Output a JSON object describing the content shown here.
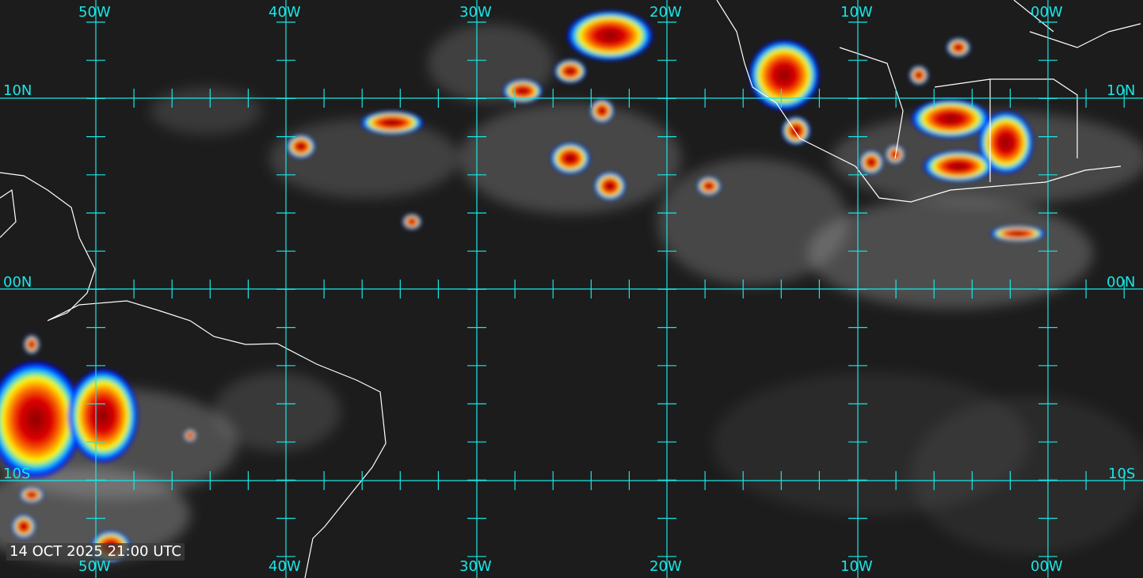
{
  "timestamp": "14 OCT 2025 21:00 UTC",
  "longitude_labels_top": [
    "50W",
    "40W",
    "30W",
    "20W",
    "10W",
    "00W"
  ],
  "longitude_labels_bottom": [
    "50W",
    "40W",
    "30W",
    "20W",
    "10W",
    "00W"
  ],
  "latitude_labels_left": [
    "10N",
    "00N",
    "10S"
  ],
  "latitude_labels_right": [
    "10N",
    "00N",
    "10S"
  ],
  "colors": {
    "grid": "#19e6e6",
    "coastline": "#ffffff",
    "cold_cloud_tops": [
      "#0000ff",
      "#00c8ff",
      "#ffff00",
      "#ff8000",
      "#ff0000",
      "#8b0000"
    ]
  }
}
